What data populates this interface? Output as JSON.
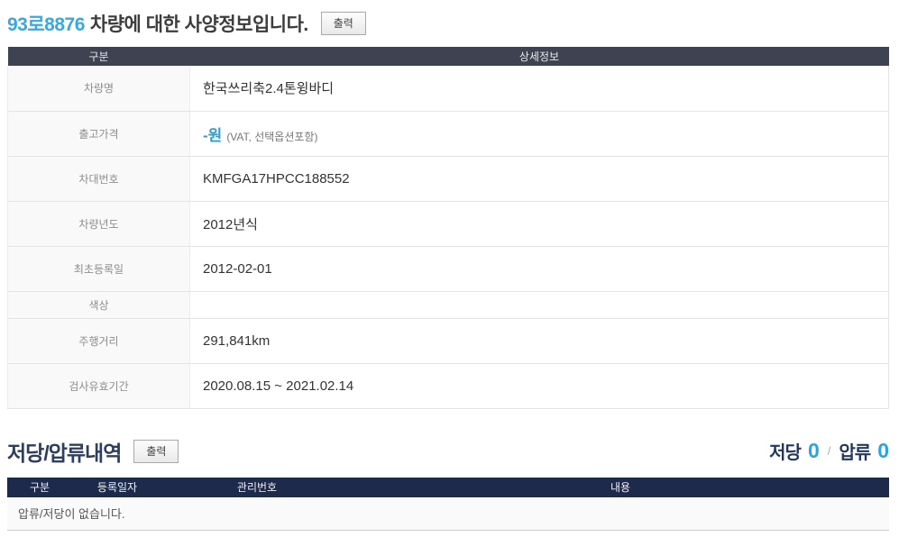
{
  "page": {
    "title": {
      "plate": "93로8876",
      "suffix": "차량에 대한 사양정보입니다.",
      "print_label": "출력"
    }
  },
  "spec_table": {
    "headers": {
      "col1": "구분",
      "col2": "상세정보"
    },
    "rows": [
      {
        "label": "차량명",
        "value": "한국쓰리축2.4톤윙바디"
      },
      {
        "label": "출고가격",
        "value_main": "-원",
        "value_sub": "(VAT, 선택옵션포함)"
      },
      {
        "label": "차대번호",
        "value": "KMFGA17HPCC188552"
      },
      {
        "label": "차량년도",
        "value": "2012년식"
      },
      {
        "label": "최초등록일",
        "value": "2012-02-01"
      },
      {
        "label": "색상",
        "value": ""
      },
      {
        "label": "주행거리",
        "value": "291,841km"
      },
      {
        "label": "검사유효기간",
        "value": "2020.08.15 ~ 2021.02.14"
      }
    ]
  },
  "lien_section": {
    "title": "저당/압류내역",
    "print_label": "출력",
    "summary": {
      "mortgage_label": "저당",
      "mortgage_count": "0",
      "separator": "/",
      "seizure_label": "압류",
      "seizure_count": "0"
    }
  },
  "lien_table": {
    "headers": [
      "구분",
      "등록일자",
      "관리번호",
      "내용"
    ],
    "empty_message": "압류/저당이 없습니다."
  },
  "colors": {
    "plate_accent": "#3aa7de",
    "price_accent": "#2d9fd8",
    "count_accent": "#29a3e2",
    "spec_header_bg": "#3d4350",
    "lien_header_bg": "#1e2a4b"
  }
}
